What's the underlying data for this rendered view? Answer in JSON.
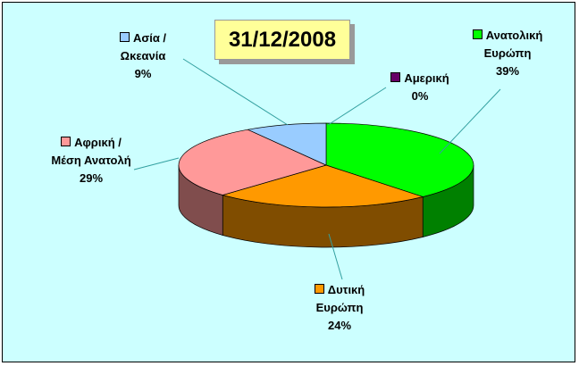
{
  "chart_data": {
    "type": "pie3d",
    "title": "31/12/2008",
    "categories": [
      "Ανατολική Ευρώπη",
      "Αμερική",
      "Δυτική Ευρώπη",
      "Αφρική / Μέση Ανατολή",
      "Ασία / Ωκεανία"
    ],
    "values": [
      39,
      0,
      24,
      29,
      9
    ],
    "value_labels": [
      "39%",
      "0%",
      "24%",
      "29%",
      "9%"
    ],
    "colors": [
      "#00ff00",
      "#660066",
      "#ff9900",
      "#ff9999",
      "#99ccff"
    ]
  }
}
